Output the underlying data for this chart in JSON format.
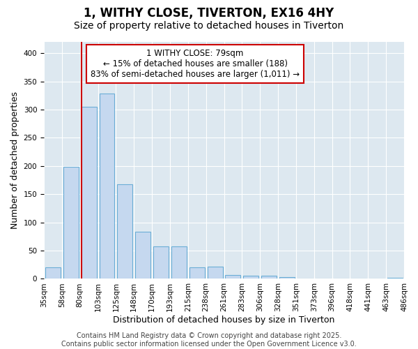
{
  "title": "1, WITHY CLOSE, TIVERTON, EX16 4HY",
  "subtitle": "Size of property relative to detached houses in Tiverton",
  "xlabel": "Distribution of detached houses by size in Tiverton",
  "ylabel": "Number of detached properties",
  "bar_values": [
    20,
    198,
    305,
    328,
    167,
    84,
    57,
    57,
    20,
    22,
    7,
    5,
    5,
    3,
    1,
    1,
    1,
    1,
    1,
    2
  ],
  "bin_labels": [
    "35sqm",
    "58sqm",
    "80sqm",
    "103sqm",
    "125sqm",
    "148sqm",
    "170sqm",
    "193sqm",
    "215sqm",
    "238sqm",
    "261sqm",
    "283sqm",
    "306sqm",
    "328sqm",
    "351sqm",
    "373sqm",
    "396sqm",
    "418sqm",
    "441sqm",
    "463sqm",
    "486sqm"
  ],
  "bar_color": "#c5d8ef",
  "bar_edge_color": "#6baed6",
  "annotation_text": "1 WITHY CLOSE: 79sqm\n← 15% of detached houses are smaller (188)\n83% of semi-detached houses are larger (1,011) →",
  "vline_x": 2,
  "vline_color": "#cc0000",
  "annotation_box_color": "#cc0000",
  "ylim": [
    0,
    420
  ],
  "yticks": [
    0,
    50,
    100,
    150,
    200,
    250,
    300,
    350,
    400
  ],
  "footer_text": "Contains HM Land Registry data © Crown copyright and database right 2025.\nContains public sector information licensed under the Open Government Licence v3.0.",
  "bg_color": "#ffffff",
  "plot_bg_color": "#dde8f0",
  "grid_color": "#ffffff",
  "title_fontsize": 12,
  "subtitle_fontsize": 10,
  "axis_label_fontsize": 9,
  "tick_fontsize": 7.5,
  "annotation_fontsize": 8.5,
  "footer_fontsize": 7
}
